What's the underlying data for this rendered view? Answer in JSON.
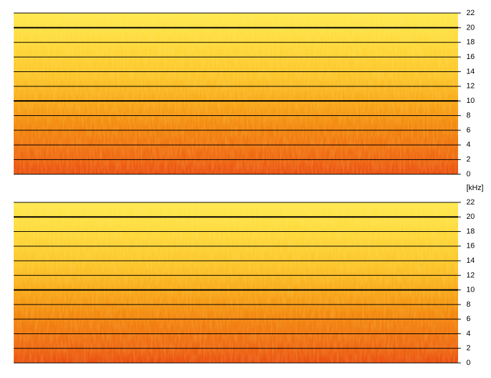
{
  "chart_data": [
    {
      "type": "spectrogram",
      "ylim": [
        0,
        22
      ],
      "yticks": [
        0,
        2,
        4,
        6,
        8,
        10,
        12,
        14,
        16,
        18,
        20,
        22
      ],
      "major_yticks": [
        10,
        20
      ],
      "grid": true
    },
    {
      "type": "spectrogram",
      "ylabel": "[kHz]",
      "ylim": [
        0,
        22
      ],
      "yticks": [
        0,
        2,
        4,
        6,
        8,
        10,
        12,
        14,
        16,
        18,
        20,
        22
      ],
      "major_yticks": [
        10,
        20
      ],
      "grid": true
    }
  ]
}
